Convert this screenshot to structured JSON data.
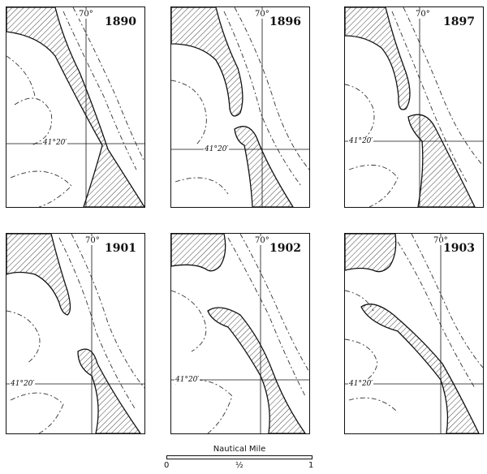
{
  "panels": [
    {
      "year": "1890",
      "lon_label": "70°",
      "lat_label": "41°20′"
    },
    {
      "year": "1896",
      "lon_label": "70°",
      "lat_label": "41°20′"
    },
    {
      "year": "1897",
      "lon_label": "70°",
      "lat_label": "41°20′"
    },
    {
      "year": "1901",
      "lon_label": "70°",
      "lat_label": "41°20′"
    },
    {
      "year": "1902",
      "lon_label": "70°",
      "lat_label": "41°20′"
    },
    {
      "year": "1903",
      "lon_label": "70°",
      "lat_label": "41°20′"
    }
  ],
  "scale": {
    "title": "Nautical Mile",
    "tick_0": "0",
    "tick_half": "½",
    "tick_1": "1"
  }
}
